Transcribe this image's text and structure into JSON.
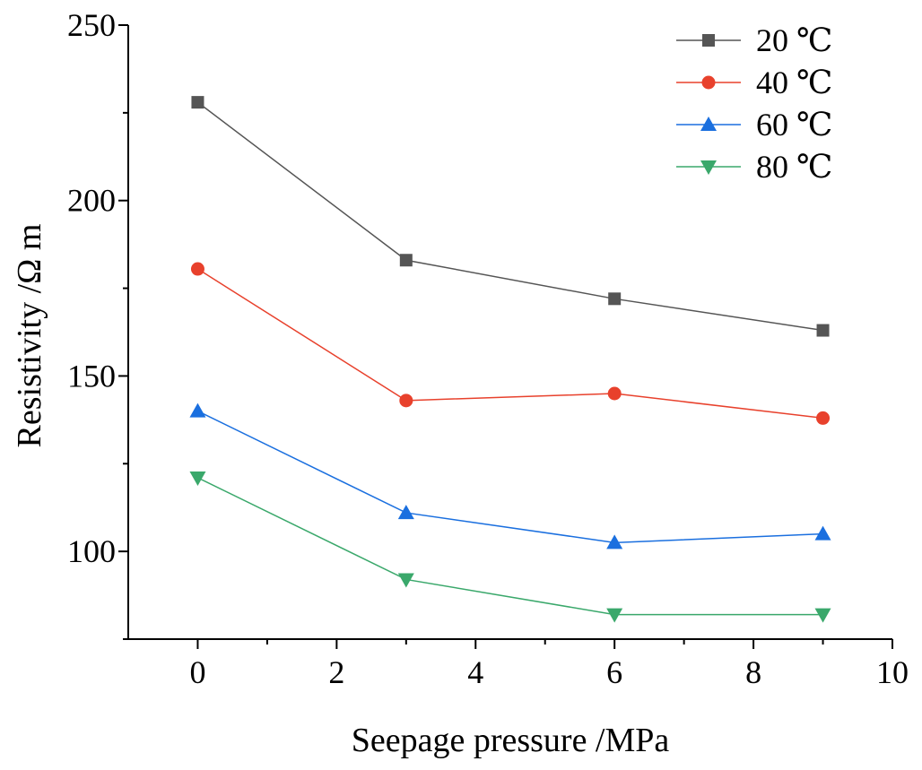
{
  "chart_data": {
    "type": "line",
    "title": "",
    "xlabel": "Seepage pressure /MPa",
    "ylabel": "Resistivity /Ω m",
    "xlim": [
      -1,
      10
    ],
    "ylim": [
      75,
      250
    ],
    "xticks": [
      0,
      2,
      4,
      6,
      8,
      10
    ],
    "yticks": [
      100,
      150,
      200,
      250
    ],
    "grid": false,
    "legend_position": "top-right",
    "x": [
      0,
      3,
      6,
      9
    ],
    "series": [
      {
        "name": "20 ℃",
        "color": "#555555",
        "marker": "square",
        "values": [
          228,
          183,
          172,
          163
        ]
      },
      {
        "name": "40 ℃",
        "color": "#e8412c",
        "marker": "circle",
        "values": [
          180.5,
          143,
          145,
          138
        ]
      },
      {
        "name": "60 ℃",
        "color": "#1a6fdf",
        "marker": "triangle-up",
        "values": [
          140,
          111,
          102.5,
          105
        ]
      },
      {
        "name": "80 ℃",
        "color": "#3aa86b",
        "marker": "triangle-down",
        "values": [
          121,
          92,
          82,
          82
        ]
      }
    ]
  }
}
